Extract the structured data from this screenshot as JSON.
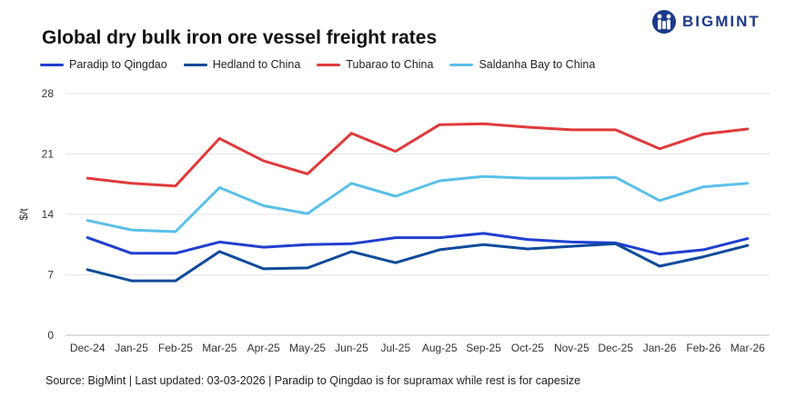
{
  "brand": {
    "name": "BIGMINT",
    "color": "#1b3a8a"
  },
  "footer": {
    "source": "Source: BigMint | Last updated: 03-03-2026 | Paradip to Qingdao is for supramax while rest is for capesize"
  },
  "chart_data": {
    "type": "line",
    "title": "Global dry bulk iron ore vessel freight rates",
    "xlabel": "",
    "ylabel": "$/t",
    "ylim": [
      0,
      28
    ],
    "yticks": [
      "0",
      "7",
      "14",
      "21",
      "28"
    ],
    "grid": "horizontal",
    "legend": "top-left",
    "categories": [
      "Dec-24",
      "Jan-25",
      "Feb-25",
      "Mar-25",
      "Apr-25",
      "May-25",
      "Jun-25",
      "Jul-25",
      "Aug-25",
      "Sep-25",
      "Oct-25",
      "Nov-25",
      "Dec-25",
      "Jan-26",
      "Feb-26",
      "Mar-26"
    ],
    "series": [
      {
        "name": "Paradip to Qingdao",
        "color": "#1f3fd0",
        "values": [
          11.3,
          9.5,
          9.5,
          10.8,
          10.2,
          10.5,
          10.6,
          11.3,
          11.3,
          11.8,
          11.1,
          10.8,
          10.7,
          9.4,
          9.9,
          11.2
        ]
      },
      {
        "name": "Hedland to China",
        "color": "#0d4a9a",
        "values": [
          7.6,
          6.3,
          6.3,
          9.7,
          7.7,
          7.8,
          9.7,
          8.4,
          9.9,
          10.5,
          10.0,
          10.3,
          10.6,
          8.0,
          9.1,
          10.4
        ]
      },
      {
        "name": "Tubarao to China",
        "color": "#e03a3a",
        "values": [
          18.2,
          17.6,
          17.3,
          22.8,
          20.2,
          18.7,
          23.4,
          21.3,
          24.4,
          24.5,
          24.1,
          23.8,
          23.8,
          21.6,
          23.3,
          23.9
        ]
      },
      {
        "name": "Saldanha Bay to China",
        "color": "#5bc0e8",
        "values": [
          13.3,
          12.2,
          12.0,
          17.1,
          15.0,
          14.1,
          17.6,
          16.1,
          17.9,
          18.4,
          18.2,
          18.2,
          18.3,
          15.6,
          17.2,
          17.6
        ]
      }
    ]
  }
}
